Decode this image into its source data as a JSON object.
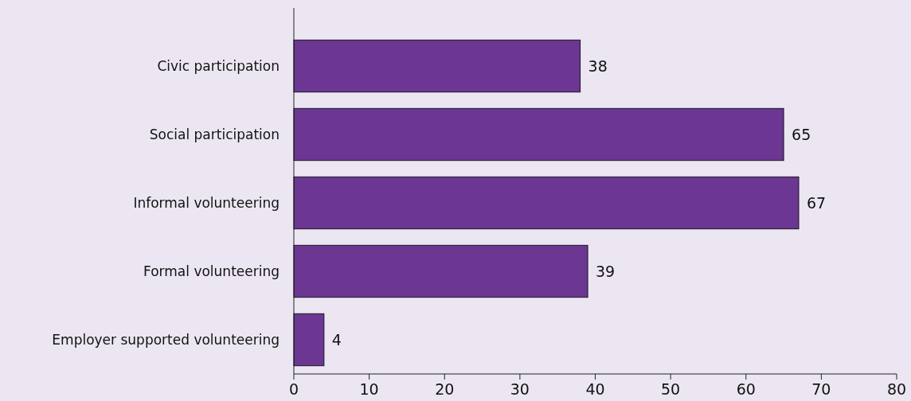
{
  "chart_data": {
    "type": "bar",
    "orientation": "horizontal",
    "categories": [
      "Civic participation",
      "Social participation",
      "Informal volunteering",
      "Formal volunteering",
      "Employer supported volunteering"
    ],
    "values": [
      38,
      65,
      67,
      39,
      4
    ],
    "color": "#6b3793",
    "data_labels": true,
    "xlim": [
      0,
      80
    ],
    "xticks": [
      0,
      10,
      20,
      30,
      40,
      50,
      60,
      70,
      80
    ]
  }
}
